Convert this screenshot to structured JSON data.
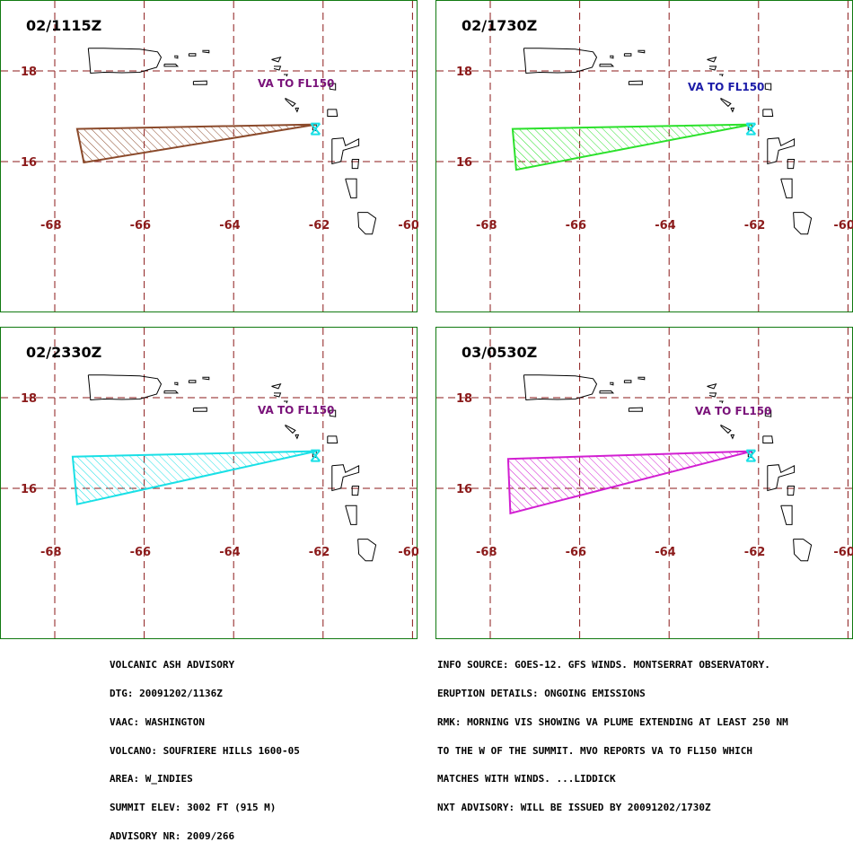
{
  "panels": [
    {
      "time": "02/1115Z",
      "label": "VA TO FL150",
      "label_color": "#7a137a",
      "plume_color": "#8b4a2b"
    },
    {
      "time": "02/1730Z",
      "label": "VA  TO  FL150",
      "label_color": "#1c1ca8",
      "plume_color": "#2be12b"
    },
    {
      "time": "02/2330Z",
      "label": "VA TO FL150",
      "label_color": "#7a137a",
      "plume_color": "#19e0e6"
    },
    {
      "time": "03/0530Z",
      "label": "VA TO FL150",
      "label_color": "#7a137a",
      "plume_color": "#d21fd2"
    }
  ],
  "axes": {
    "lat_labels": [
      "18",
      "16"
    ],
    "lon_labels": [
      "-68",
      "-66",
      "-64",
      "-62",
      "-60"
    ]
  },
  "colors": {
    "grid": "#8b1a1a",
    "border": "#117a11",
    "coast": "#000000",
    "volcano": "#19e0e6"
  },
  "footer_left": [
    "VOLCANIC ASH ADVISORY",
    "DTG: 20091202/1136Z",
    "VAAC: WASHINGTON",
    "VOLCANO: SOUFRIERE HILLS 1600-05",
    "AREA: W_INDIES",
    "SUMMIT ELEV: 3002 FT (915 M)",
    "ADVISORY NR: 2009/266"
  ],
  "footer_right": [
    "INFO SOURCE: GOES-12. GFS WINDS. MONTSERRAT OBSERVATORY.",
    "ERUPTION DETAILS: ONGOING EMISSIONS",
    "RMK: MORNING VIS SHOWING VA PLUME EXTENDING AT LEAST 250 NM",
    "TO THE W OF THE SUMMIT. MVO REPORTS VA TO FL150 WHICH",
    "MATCHES WITH WINDS. ...LIDDICK",
    "NXT ADVISORY: WILL BE ISSUED BY 20091202/1730Z"
  ]
}
